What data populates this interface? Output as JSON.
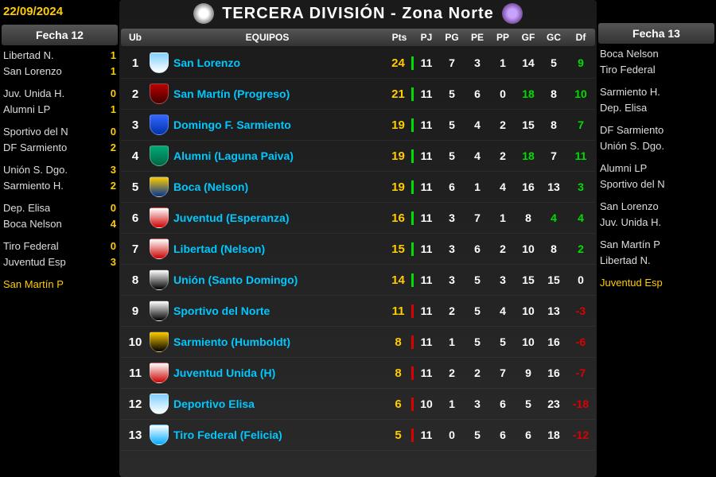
{
  "date": "22/09/2024",
  "title": "TERCERA DIVISIÓN - Zona Norte",
  "left": {
    "header": "Fecha 12",
    "pairs": [
      [
        {
          "t": "Libertad N.",
          "s": "1"
        },
        {
          "t": "San Lorenzo",
          "s": "1"
        }
      ],
      [
        {
          "t": "Juv. Unida H.",
          "s": "0"
        },
        {
          "t": "Alumni LP",
          "s": "1"
        }
      ],
      [
        {
          "t": "Sportivo del N",
          "s": "0"
        },
        {
          "t": "DF Sarmiento",
          "s": "2"
        }
      ],
      [
        {
          "t": "Unión S. Dgo.",
          "s": "3"
        },
        {
          "t": "Sarmiento H.",
          "s": "2"
        }
      ],
      [
        {
          "t": "Dep. Elisa",
          "s": "0"
        },
        {
          "t": "Boca Nelson",
          "s": "4"
        }
      ],
      [
        {
          "t": "Tiro Federal",
          "s": "0"
        },
        {
          "t": "Juventud Esp",
          "s": "3"
        }
      ],
      [
        {
          "t": "San Martín P",
          "s": "",
          "hl": true
        }
      ]
    ]
  },
  "right": {
    "header": "Fecha 13",
    "pairs": [
      [
        {
          "t": "Boca Nelson"
        },
        {
          "t": "Tiro Federal"
        }
      ],
      [
        {
          "t": "Sarmiento H."
        },
        {
          "t": "Dep. Elisa"
        }
      ],
      [
        {
          "t": "DF Sarmiento"
        },
        {
          "t": "Unión S. Dgo."
        }
      ],
      [
        {
          "t": "Alumni LP"
        },
        {
          "t": "Sportivo del N"
        }
      ],
      [
        {
          "t": "San Lorenzo"
        },
        {
          "t": "Juv. Unida H."
        }
      ],
      [
        {
          "t": "San Martín P"
        },
        {
          "t": "Libertad N."
        }
      ],
      [
        {
          "t": "Juventud Esp",
          "hl": true
        }
      ]
    ]
  },
  "headers": {
    "ub": "Ub",
    "equipos": "EQUIPOS",
    "pts": "Pts",
    "pj": "PJ",
    "pg": "PG",
    "pe": "PE",
    "pp": "PP",
    "gf": "GF",
    "gc": "GC",
    "df": "Df"
  },
  "colors": {
    "pos": "#00dd00",
    "neg": "#dd0000",
    "neutral": "#ffffff",
    "gf_hi": "#00dd00",
    "gc_hi": "#00dd00"
  },
  "standings": [
    {
      "ub": 1,
      "team": "San Lorenzo",
      "pts": 24,
      "pj": 11,
      "pg": 7,
      "pe": 3,
      "pp": 1,
      "gf": 14,
      "gc": 5,
      "df": 9,
      "shield": "linear-gradient(#7ecfff,#ffffff)",
      "zone": "green"
    },
    {
      "ub": 2,
      "team": "San Martín (Progreso)",
      "pts": 21,
      "pj": 11,
      "pg": 5,
      "pe": 6,
      "pp": 0,
      "gf": 18,
      "gf_hi": true,
      "gc": 8,
      "df": 10,
      "shield": "linear-gradient(#b00,#400)",
      "zone": "green"
    },
    {
      "ub": 3,
      "team": "Domingo F. Sarmiento",
      "pts": 19,
      "pj": 11,
      "pg": 5,
      "pe": 4,
      "pp": 2,
      "gf": 15,
      "gc": 8,
      "df": 7,
      "shield": "linear-gradient(#3366ff,#0033aa)",
      "zone": "green"
    },
    {
      "ub": 4,
      "team": "Alumni (Laguna Paiva)",
      "pts": 19,
      "pj": 11,
      "pg": 5,
      "pe": 4,
      "pp": 2,
      "gf": 18,
      "gf_hi": true,
      "gc": 7,
      "df": 11,
      "shield": "linear-gradient(#0a7,#064)",
      "zone": "green"
    },
    {
      "ub": 5,
      "team": "Boca (Nelson)",
      "pts": 19,
      "pj": 11,
      "pg": 6,
      "pe": 1,
      "pp": 4,
      "gf": 16,
      "gc": 13,
      "df": 3,
      "shield": "linear-gradient(#ffcc00,#003399)",
      "zone": "green"
    },
    {
      "ub": 6,
      "team": "Juventud (Esperanza)",
      "pts": 16,
      "pj": 11,
      "pg": 3,
      "pe": 7,
      "pp": 1,
      "gf": 8,
      "gc": 4,
      "gc_hi": true,
      "df": 4,
      "shield": "linear-gradient(#fff,#c00)",
      "zone": "green"
    },
    {
      "ub": 7,
      "team": "Libertad (Nelson)",
      "pts": 15,
      "pj": 11,
      "pg": 3,
      "pe": 6,
      "pp": 2,
      "gf": 10,
      "gc": 8,
      "df": 2,
      "shield": "linear-gradient(#fff,#c00)",
      "zone": "green"
    },
    {
      "ub": 8,
      "team": "Unión (Santo Domingo)",
      "pts": 14,
      "pj": 11,
      "pg": 3,
      "pe": 5,
      "pp": 3,
      "gf": 15,
      "gc": 15,
      "df": 0,
      "shield": "linear-gradient(#fff,#000)",
      "zone": "green"
    },
    {
      "ub": 9,
      "team": "Sportivo del Norte",
      "pts": 11,
      "pj": 11,
      "pg": 2,
      "pe": 5,
      "pp": 4,
      "gf": 10,
      "gc": 13,
      "df": -3,
      "shield": "linear-gradient(#fff,#000)",
      "zone": "red"
    },
    {
      "ub": 10,
      "team": "Sarmiento (Humboldt)",
      "pts": 8,
      "pj": 11,
      "pg": 1,
      "pe": 5,
      "pp": 5,
      "gf": 10,
      "gc": 16,
      "df": -6,
      "shield": "linear-gradient(#ffcc00,#000)",
      "zone": "red"
    },
    {
      "ub": 11,
      "team": "Juventud Unida (H)",
      "pts": 8,
      "pj": 11,
      "pg": 2,
      "pe": 2,
      "pp": 7,
      "gf": 9,
      "gc": 16,
      "df": -7,
      "shield": "linear-gradient(#fff,#c00)",
      "zone": "red"
    },
    {
      "ub": 12,
      "team": "Deportivo Elisa",
      "pts": 6,
      "pj": 10,
      "pg": 1,
      "pe": 3,
      "pp": 6,
      "gf": 5,
      "gc": 23,
      "df": -18,
      "shield": "linear-gradient(#7ecfff,#fff)",
      "zone": "red"
    },
    {
      "ub": 13,
      "team": "Tiro Federal (Felicia)",
      "pts": 5,
      "pj": 11,
      "pg": 0,
      "pe": 5,
      "pp": 6,
      "gf": 6,
      "gc": 18,
      "df": -12,
      "shield": "linear-gradient(#fff,#00aaff)",
      "zone": "red"
    }
  ]
}
